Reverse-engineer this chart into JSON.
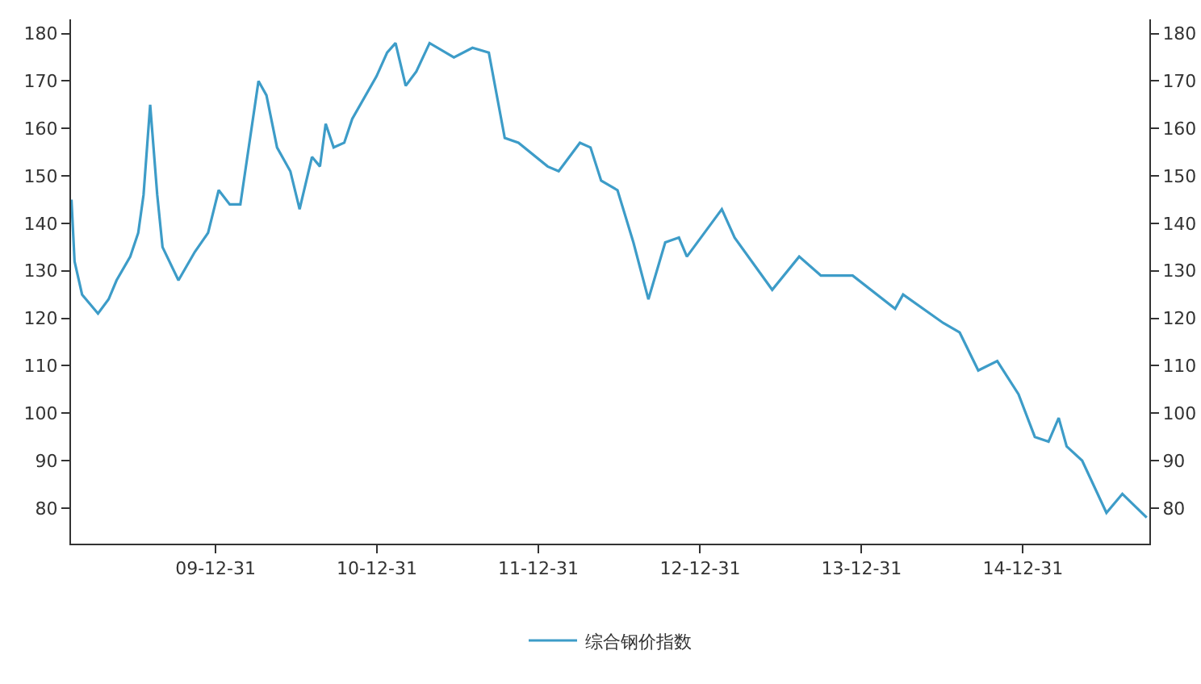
{
  "chart_data": {
    "type": "line",
    "legend": "bottom",
    "grid": false,
    "marker": "none",
    "line_style": "solid",
    "xlim": [
      "2009-02-07",
      "2015-10-13"
    ],
    "xticks": [
      {
        "value": "2009-12-31",
        "label": "09-12-31"
      },
      {
        "value": "2010-12-31",
        "label": "10-12-31"
      },
      {
        "value": "2011-12-31",
        "label": "11-12-31"
      },
      {
        "value": "2012-12-31",
        "label": "12-12-31"
      },
      {
        "value": "2013-12-31",
        "label": "13-12-31"
      },
      {
        "value": "2014-12-31",
        "label": "14-12-31"
      }
    ],
    "ylim": [
      72.5,
      183
    ],
    "yticks": [
      80,
      90,
      100,
      110,
      120,
      130,
      140,
      150,
      160,
      170,
      180
    ],
    "y2lim": [
      72.5,
      183
    ],
    "y2ticks": [
      80,
      90,
      100,
      110,
      120,
      130,
      140,
      150,
      160,
      170,
      180
    ],
    "series": [
      {
        "name": "综合钢价指数",
        "color": "#3d9cc8",
        "x": [
          "2009-02-08",
          "2009-02-15",
          "2009-03-04",
          "2009-04-09",
          "2009-05-03",
          "2009-05-21",
          "2009-06-21",
          "2009-07-09",
          "2009-07-21",
          "2009-08-05",
          "2009-08-21",
          "2009-09-02",
          "2009-10-08",
          "2009-11-14",
          "2009-12-14",
          "2010-01-07",
          "2010-02-01",
          "2010-02-25",
          "2010-04-07",
          "2010-04-25",
          "2010-05-19",
          "2010-06-18",
          "2010-07-09",
          "2010-08-06",
          "2010-08-24",
          "2010-09-06",
          "2010-09-24",
          "2010-10-18",
          "2010-11-05",
          "2010-12-30",
          "2011-01-23",
          "2011-02-11",
          "2011-03-06",
          "2011-03-30",
          "2011-04-29",
          "2011-06-23",
          "2011-08-04",
          "2011-09-10",
          "2011-10-16",
          "2011-11-16",
          "2012-01-21",
          "2012-02-15",
          "2012-04-03",
          "2012-04-27",
          "2012-05-21",
          "2012-06-27",
          "2012-08-02",
          "2012-09-05",
          "2012-10-13",
          "2012-11-13",
          "2012-12-01",
          "2013-02-18",
          "2013-03-19",
          "2013-06-12",
          "2013-08-12",
          "2013-09-30",
          "2013-12-11",
          "2014-03-17",
          "2014-04-04",
          "2014-07-04",
          "2014-08-10",
          "2014-09-21",
          "2014-11-03",
          "2014-12-21",
          "2015-01-27",
          "2015-02-27",
          "2015-03-22",
          "2015-04-09",
          "2015-05-14",
          "2015-07-08",
          "2015-08-13",
          "2015-10-07"
        ],
        "values": [
          145,
          132,
          125,
          121,
          124,
          128,
          133,
          138,
          146,
          165,
          146,
          135,
          128,
          134,
          138,
          147,
          144,
          144,
          170,
          167,
          156,
          151,
          143,
          154,
          152,
          161,
          156,
          157,
          162,
          171,
          176,
          178,
          169,
          172,
          178,
          175,
          177,
          176,
          158,
          157,
          152,
          151,
          157,
          156,
          149,
          147,
          136,
          124,
          136,
          137,
          133,
          143,
          137,
          126,
          133,
          129,
          129,
          122,
          125,
          119,
          117,
          109,
          111,
          104,
          95,
          94,
          99,
          93,
          90,
          79,
          83,
          78
        ]
      }
    ]
  }
}
